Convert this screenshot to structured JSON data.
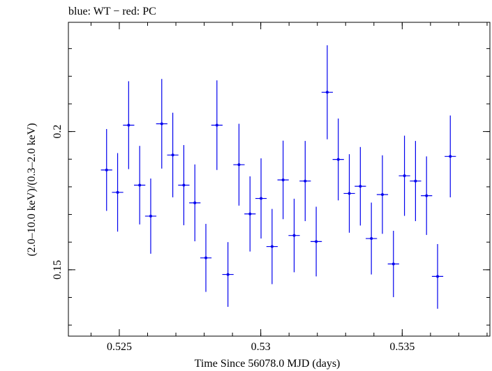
{
  "chart_data": {
    "type": "scatter",
    "title": "blue: WT − red: PC",
    "xlabel": "Time Since 56078.0 MJD (days)",
    "ylabel": "(2.0–10.0 keV)/(0.3–2.0 keV)",
    "xlim": [
      0.5232,
      0.5381
    ],
    "ylim": [
      0.126,
      0.2395
    ],
    "x_ticks": [
      {
        "value": 0.525,
        "label": "0.525"
      },
      {
        "value": 0.53,
        "label": "0.53"
      },
      {
        "value": 0.535,
        "label": "0.535"
      }
    ],
    "y_ticks": [
      {
        "value": 0.15,
        "label": "0.15"
      },
      {
        "value": 0.2,
        "label": "0.2"
      }
    ],
    "series": [
      {
        "color": "#0000ee",
        "points": [
          {
            "x": 0.52455,
            "xerr": 0.0002,
            "y": 0.1861,
            "yerr": 0.0148
          },
          {
            "x": 0.52494,
            "xerr": 0.0002,
            "y": 0.178,
            "yerr": 0.0142
          },
          {
            "x": 0.52533,
            "xerr": 0.0002,
            "y": 0.2023,
            "yerr": 0.0159
          },
          {
            "x": 0.52572,
            "xerr": 0.0002,
            "y": 0.1806,
            "yerr": 0.0142
          },
          {
            "x": 0.52611,
            "xerr": 0.0002,
            "y": 0.1694,
            "yerr": 0.0136
          },
          {
            "x": 0.5265,
            "xerr": 0.0002,
            "y": 0.2028,
            "yerr": 0.0162
          },
          {
            "x": 0.52689,
            "xerr": 0.0002,
            "y": 0.1915,
            "yerr": 0.0153
          },
          {
            "x": 0.52728,
            "xerr": 0.0002,
            "y": 0.1806,
            "yerr": 0.0145
          },
          {
            "x": 0.52767,
            "xerr": 0.0002,
            "y": 0.1742,
            "yerr": 0.0139
          },
          {
            "x": 0.52806,
            "xerr": 0.0002,
            "y": 0.1543,
            "yerr": 0.0123
          },
          {
            "x": 0.52845,
            "xerr": 0.0002,
            "y": 0.2023,
            "yerr": 0.0162
          },
          {
            "x": 0.52884,
            "xerr": 0.0002,
            "y": 0.1483,
            "yerr": 0.0117
          },
          {
            "x": 0.52923,
            "xerr": 0.0002,
            "y": 0.188,
            "yerr": 0.0148
          },
          {
            "x": 0.52962,
            "xerr": 0.0002,
            "y": 0.1702,
            "yerr": 0.0136
          },
          {
            "x": 0.53001,
            "xerr": 0.0002,
            "y": 0.1758,
            "yerr": 0.0145
          },
          {
            "x": 0.5304,
            "xerr": 0.0002,
            "y": 0.1584,
            "yerr": 0.0136
          },
          {
            "x": 0.53079,
            "xerr": 0.0002,
            "y": 0.1825,
            "yerr": 0.0142
          },
          {
            "x": 0.53118,
            "xerr": 0.0002,
            "y": 0.1624,
            "yerr": 0.0133
          },
          {
            "x": 0.53157,
            "xerr": 0.0002,
            "y": 0.1821,
            "yerr": 0.0145
          },
          {
            "x": 0.53196,
            "xerr": 0.0002,
            "y": 0.1602,
            "yerr": 0.0126
          },
          {
            "x": 0.53235,
            "xerr": 0.0002,
            "y": 0.2142,
            "yerr": 0.017
          },
          {
            "x": 0.53274,
            "xerr": 0.0002,
            "y": 0.1899,
            "yerr": 0.0148
          },
          {
            "x": 0.53313,
            "xerr": 0.0002,
            "y": 0.1776,
            "yerr": 0.0142
          },
          {
            "x": 0.53352,
            "xerr": 0.0002,
            "y": 0.1802,
            "yerr": 0.0142
          },
          {
            "x": 0.53391,
            "xerr": 0.0002,
            "y": 0.1613,
            "yerr": 0.013
          },
          {
            "x": 0.5343,
            "xerr": 0.0002,
            "y": 0.1772,
            "yerr": 0.0142
          },
          {
            "x": 0.53469,
            "xerr": 0.0002,
            "y": 0.1521,
            "yerr": 0.012
          },
          {
            "x": 0.53508,
            "xerr": 0.0002,
            "y": 0.184,
            "yerr": 0.0145
          },
          {
            "x": 0.53547,
            "xerr": 0.0002,
            "y": 0.1821,
            "yerr": 0.0145
          },
          {
            "x": 0.53586,
            "xerr": 0.0002,
            "y": 0.1768,
            "yerr": 0.0142
          },
          {
            "x": 0.53625,
            "xerr": 0.0002,
            "y": 0.1476,
            "yerr": 0.0117
          },
          {
            "x": 0.5367,
            "xerr": 0.0002,
            "y": 0.191,
            "yerr": 0.0148
          }
        ]
      }
    ]
  }
}
